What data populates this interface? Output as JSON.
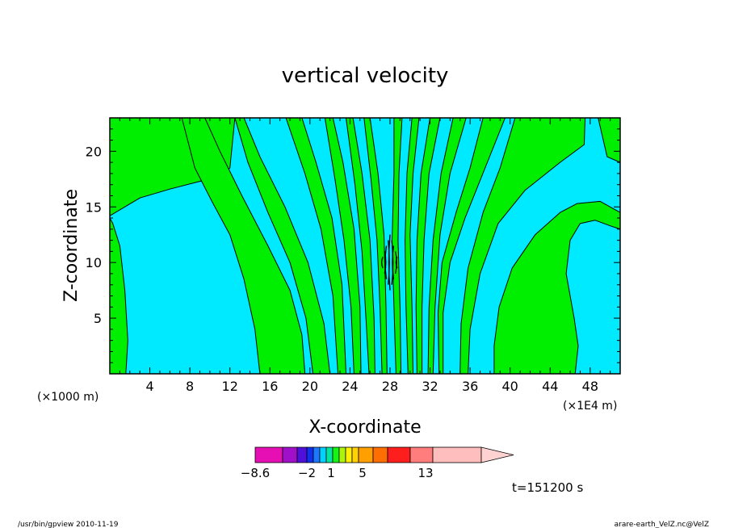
{
  "chart_data": {
    "type": "heatmap",
    "title": "vertical velocity",
    "xlabel": "X-coordinate",
    "ylabel": "Z-coordinate",
    "x_unit_left": "(×1000 m)",
    "x_unit_right": "(×1E4 m)",
    "xlim": [
      0,
      51
    ],
    "ylim": [
      0,
      23
    ],
    "x_ticks": [
      4,
      8,
      12,
      16,
      20,
      24,
      28,
      32,
      36,
      40,
      44,
      48
    ],
    "y_ticks": [
      5,
      10,
      15,
      20
    ],
    "colors": {
      "negative": "#00eaff",
      "positive": "#00ee00",
      "contour": "#000000",
      "strong_core": "#000000",
      "plot_bg": "#00eaff"
    },
    "bands": [
      {
        "sign": "positive",
        "x_bottom": [
          0,
          1.6
        ],
        "x_top": [
          0,
          5.2
        ],
        "points": [
          [
            0,
            0
          ],
          [
            1.6,
            0
          ],
          [
            1.8,
            3
          ],
          [
            1.5,
            7.5
          ],
          [
            1.0,
            11.5
          ],
          [
            0.3,
            13.5
          ],
          [
            0,
            14
          ]
        ]
      },
      {
        "sign": "positive",
        "x_points": [
          [
            0,
            14.2
          ],
          [
            3,
            15.8
          ],
          [
            6,
            16.6
          ],
          [
            9,
            17.3
          ],
          [
            11,
            17.6
          ],
          [
            12,
            18.5
          ],
          [
            12.5,
            23
          ],
          [
            0,
            23
          ]
        ]
      },
      {
        "sign": "positive",
        "points": [
          [
            7.2,
            23
          ],
          [
            9.5,
            23
          ],
          [
            11,
            20
          ],
          [
            13.2,
            16
          ],
          [
            15.8,
            11.5
          ],
          [
            18,
            7.5
          ],
          [
            19.2,
            3.5
          ],
          [
            19.5,
            0
          ],
          [
            15,
            0
          ],
          [
            14.5,
            4
          ],
          [
            13.4,
            8.5
          ],
          [
            12,
            12.5
          ],
          [
            10.2,
            15.5
          ],
          [
            8.5,
            18.5
          ]
        ]
      },
      {
        "sign": "positive",
        "points": [
          [
            12.5,
            23
          ],
          [
            13.4,
            23
          ],
          [
            15,
            19.5
          ],
          [
            17.5,
            15
          ],
          [
            19.8,
            10
          ],
          [
            21.4,
            4.5
          ],
          [
            22,
            0
          ],
          [
            20.3,
            0
          ],
          [
            19.6,
            5
          ],
          [
            18,
            10
          ],
          [
            15.8,
            14.5
          ],
          [
            13.8,
            19
          ]
        ]
      },
      {
        "sign": "positive",
        "points": [
          [
            17.6,
            23
          ],
          [
            19.2,
            23
          ],
          [
            20.6,
            19
          ],
          [
            22.2,
            14
          ],
          [
            23.2,
            8
          ],
          [
            23.6,
            0
          ],
          [
            22.8,
            0
          ],
          [
            22.3,
            7
          ],
          [
            21.1,
            13
          ],
          [
            19.5,
            18
          ]
        ]
      },
      {
        "sign": "positive",
        "points": [
          [
            21.5,
            23
          ],
          [
            22.3,
            23
          ],
          [
            23.3,
            19
          ],
          [
            24.4,
            13
          ],
          [
            25,
            6
          ],
          [
            25.1,
            0
          ],
          [
            24.4,
            0
          ],
          [
            24.1,
            6
          ],
          [
            23.4,
            12
          ],
          [
            22.5,
            17.5
          ]
        ]
      },
      {
        "sign": "positive",
        "points": [
          [
            23.6,
            23
          ],
          [
            24.3,
            23
          ],
          [
            25.2,
            18
          ],
          [
            26,
            12
          ],
          [
            26.4,
            5
          ],
          [
            26.5,
            0
          ],
          [
            25.9,
            0
          ],
          [
            25.6,
            5
          ],
          [
            25.2,
            11
          ],
          [
            24.5,
            17
          ]
        ]
      },
      {
        "sign": "positive",
        "points": [
          [
            25.4,
            23
          ],
          [
            26,
            23
          ],
          [
            26.8,
            18
          ],
          [
            27.4,
            12.5
          ],
          [
            27.6,
            6
          ],
          [
            27.7,
            0
          ],
          [
            27.2,
            0
          ],
          [
            27.0,
            6
          ],
          [
            26.7,
            12
          ],
          [
            26.1,
            17.5
          ]
        ]
      },
      {
        "sign": "positive",
        "points": [
          [
            28.4,
            23
          ],
          [
            29.2,
            23
          ],
          [
            28.9,
            18
          ],
          [
            28.8,
            12
          ],
          [
            29.0,
            6
          ],
          [
            29.1,
            0
          ],
          [
            28.6,
            0
          ],
          [
            28.4,
            6
          ],
          [
            28.2,
            12
          ],
          [
            28.4,
            18
          ]
        ]
      },
      {
        "sign": "positive",
        "points": [
          [
            30.2,
            23
          ],
          [
            30.9,
            23
          ],
          [
            30.3,
            18
          ],
          [
            30,
            12.5
          ],
          [
            30.2,
            6
          ],
          [
            30.3,
            0
          ],
          [
            29.8,
            0
          ],
          [
            29.6,
            6
          ],
          [
            29.5,
            12
          ],
          [
            29.7,
            18
          ]
        ]
      },
      {
        "sign": "positive",
        "points": [
          [
            32,
            23
          ],
          [
            33,
            23
          ],
          [
            31.9,
            18
          ],
          [
            31.4,
            12
          ],
          [
            31.2,
            6
          ],
          [
            31.2,
            0
          ],
          [
            30.7,
            0
          ],
          [
            30.6,
            6
          ],
          [
            30.7,
            12
          ],
          [
            31.1,
            18
          ]
        ]
      },
      {
        "sign": "positive",
        "points": [
          [
            34.3,
            23
          ],
          [
            35.6,
            23
          ],
          [
            34,
            18
          ],
          [
            33,
            12.5
          ],
          [
            32.5,
            6
          ],
          [
            32.3,
            0
          ],
          [
            31.8,
            0
          ],
          [
            31.9,
            6
          ],
          [
            32.3,
            12
          ],
          [
            33.1,
            18
          ]
        ]
      },
      {
        "sign": "positive",
        "points": [
          [
            37.3,
            23
          ],
          [
            39.5,
            23
          ],
          [
            37.5,
            18.5
          ],
          [
            35.5,
            14
          ],
          [
            34,
            10
          ],
          [
            33.3,
            5.5
          ],
          [
            33.3,
            0
          ],
          [
            32.9,
            0
          ],
          [
            32.8,
            5.5
          ],
          [
            33.2,
            10
          ],
          [
            34.6,
            14.5
          ],
          [
            36,
            18.5
          ]
        ]
      },
      {
        "sign": "positive",
        "points": [
          [
            40.5,
            23
          ],
          [
            47.5,
            23
          ],
          [
            47.4,
            20.6
          ],
          [
            45,
            19
          ],
          [
            41.5,
            16.5
          ],
          [
            38.8,
            13.5
          ],
          [
            37,
            9
          ],
          [
            36,
            4
          ],
          [
            35.8,
            0
          ],
          [
            35,
            0
          ],
          [
            35.1,
            4.5
          ],
          [
            35.8,
            9.5
          ],
          [
            37.3,
            14.5
          ],
          [
            39,
            18.5
          ]
        ]
      },
      {
        "sign": "positive",
        "points": [
          [
            48.8,
            23
          ],
          [
            51,
            23
          ],
          [
            51,
            14.5
          ],
          [
            49,
            15.5
          ],
          [
            46.7,
            15.3
          ],
          [
            45,
            14.5
          ],
          [
            42.5,
            12.5
          ],
          [
            40.2,
            9.5
          ],
          [
            38.9,
            6
          ],
          [
            38.4,
            2.5
          ],
          [
            38.4,
            0
          ],
          [
            46.5,
            0
          ],
          [
            46.8,
            2.5
          ],
          [
            46.4,
            5
          ],
          [
            45.6,
            9
          ],
          [
            46,
            12
          ],
          [
            47,
            13.5
          ],
          [
            48.5,
            13.8
          ],
          [
            50,
            13.3
          ],
          [
            51,
            13
          ],
          [
            51,
            19
          ],
          [
            49.7,
            19.5
          ]
        ]
      }
    ],
    "contour_labels": [],
    "core": {
      "x": 28,
      "z_range": [
        7.5,
        12.5
      ]
    }
  },
  "colorbar": {
    "colors": [
      "#e60fb4",
      "#a010c8",
      "#5010dc",
      "#1030f0",
      "#1e78ff",
      "#00d2ff",
      "#00e6a0",
      "#14f514",
      "#aaf50a",
      "#fff000",
      "#ffd200",
      "#ffa000",
      "#ff6e00",
      "#ff1e1e",
      "#ff7d7d",
      "#ffbebe",
      "#ffd2d2"
    ],
    "labels": [
      "−8.6",
      "−2",
      "1",
      "5",
      "13"
    ]
  },
  "time_label": "t=151200 s",
  "footer_left": "/usr/bin/gpview  2010-11-19",
  "footer_right": "arare-earth_VelZ.nc@VelZ"
}
